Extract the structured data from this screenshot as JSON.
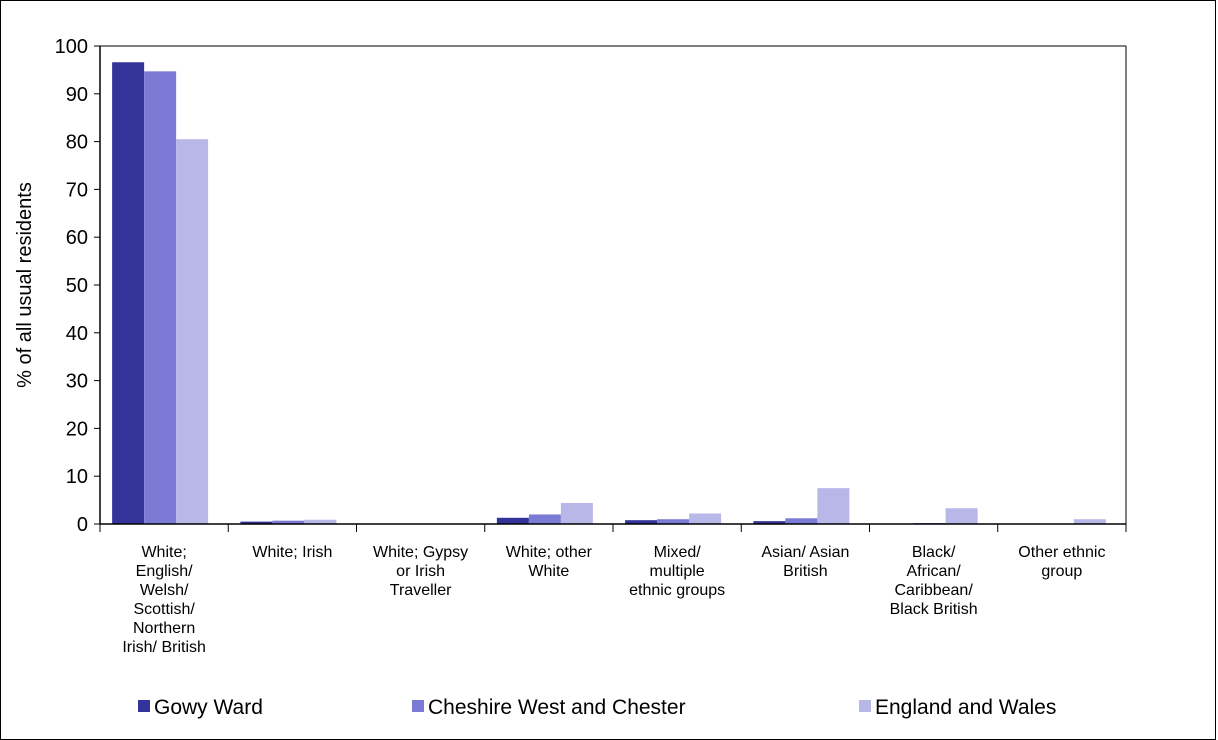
{
  "chart_data": {
    "type": "bar",
    "title": "",
    "xlabel": "",
    "ylabel": "% of all usual residents",
    "ylim": [
      0,
      100
    ],
    "yticks": [
      0,
      10,
      20,
      30,
      40,
      50,
      60,
      70,
      80,
      90,
      100
    ],
    "grid": false,
    "legend_position": "bottom",
    "categories": [
      [
        "White;",
        "English/",
        "Welsh/",
        "Scottish/",
        "Northern",
        "Irish/ British"
      ],
      [
        "White; Irish"
      ],
      [
        "White; Gypsy",
        "or Irish",
        "Traveller"
      ],
      [
        "White; other",
        "White"
      ],
      [
        "Mixed/",
        "multiple",
        "ethnic groups"
      ],
      [
        "Asian/ Asian",
        "British"
      ],
      [
        "Black/",
        "African/",
        "Caribbean/",
        "Black British"
      ],
      [
        "Other ethnic",
        "group"
      ]
    ],
    "series": [
      {
        "name": "Gowy Ward",
        "color": "#333399",
        "values": [
          96.6,
          0.5,
          0.0,
          1.3,
          0.8,
          0.6,
          0.1,
          0.1
        ]
      },
      {
        "name": "Cheshire West and Chester",
        "color": "#7b7bd6",
        "values": [
          94.7,
          0.7,
          0.1,
          2.0,
          1.0,
          1.2,
          0.2,
          0.1
        ]
      },
      {
        "name": "England and Wales",
        "color": "#b8b8e8",
        "values": [
          80.5,
          0.9,
          0.1,
          4.4,
          2.2,
          7.5,
          3.3,
          1.0
        ]
      }
    ]
  }
}
